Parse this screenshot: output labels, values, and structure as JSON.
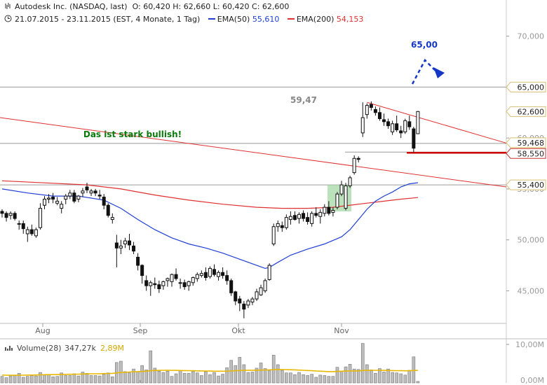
{
  "header": {
    "title": "Autodesk Inc. (NASDAQ, last)",
    "ohlc": "O: 60,420  H: 62,660  L: 60,420  C: 62,600",
    "range": "21.07.2015 - 23.11.2015 (EST, 4 Monate, 1 Tag)",
    "ema50_label": "EMA(50)",
    "ema50_value": "55,610",
    "ema200_label": "EMA(200)",
    "ema200_value": "54,153"
  },
  "colors": {
    "ema50": "#1f3fd6",
    "ema200": "#e03030",
    "target": "#1537c8",
    "bullish": "#0a7a0a",
    "box": "#9fd59f",
    "hline": "#9a9a9a",
    "support": "#cc0000"
  },
  "annotations": {
    "target_label": "65,00",
    "level_label": "59,47",
    "bullish_text": "Das ist stark bullish!"
  },
  "price_tags": [
    "65,000",
    "62,600",
    "59,468",
    "58,550",
    "55,400"
  ],
  "volume": {
    "label": "Volume(28)",
    "value1": "347,27k",
    "value2": "2,89M",
    "axis_labels": [
      "10,00M",
      "0,00M"
    ]
  },
  "chart_data": {
    "type": "candlestick",
    "title": "Autodesk Inc. (NASDAQ, last)",
    "y_ticks": [
      {
        "label": "70,000",
        "value": 70
      },
      {
        "label": "60,000",
        "value": 60
      },
      {
        "label": "55,000",
        "value": 55
      },
      {
        "label": "50,000",
        "value": 50
      },
      {
        "label": "45,000",
        "value": 45
      }
    ],
    "x_ticks": [
      "Aug",
      "Sep",
      "Okt",
      "Nov"
    ],
    "ylim": [
      41.8,
      70.8
    ],
    "candles": [
      [
        52.8,
        53.0,
        52.2,
        52.6
      ],
      [
        52.6,
        52.8,
        51.8,
        52.2
      ],
      [
        52.4,
        52.8,
        52.0,
        52.6
      ],
      [
        52.6,
        52.8,
        51.9,
        52.1
      ],
      [
        51.6,
        51.9,
        51.0,
        51.6
      ],
      [
        51.6,
        51.9,
        50.6,
        51.1
      ],
      [
        50.6,
        51.3,
        49.8,
        51.0
      ],
      [
        51.0,
        51.5,
        50.4,
        50.6
      ],
      [
        50.4,
        51.2,
        50.2,
        51.0
      ],
      [
        51.2,
        53.6,
        51.0,
        53.1
      ],
      [
        53.4,
        54.3,
        53.0,
        54.0
      ],
      [
        54.0,
        54.5,
        53.6,
        54.1
      ],
      [
        54.2,
        54.6,
        53.6,
        54.0
      ],
      [
        53.6,
        54.2,
        53.4,
        53.8
      ],
      [
        53.1,
        53.8,
        52.6,
        53.5
      ],
      [
        54.0,
        54.5,
        53.5,
        54.3
      ],
      [
        54.3,
        54.9,
        54.0,
        54.6
      ],
      [
        54.6,
        54.9,
        53.6,
        53.8
      ],
      [
        54.0,
        54.4,
        53.7,
        54.3
      ],
      [
        54.6,
        55.1,
        54.2,
        54.8
      ],
      [
        55.2,
        55.6,
        54.6,
        54.9
      ],
      [
        54.6,
        55.0,
        54.3,
        54.8
      ],
      [
        54.8,
        55.0,
        54.3,
        54.6
      ],
      [
        54.4,
        54.9,
        54.0,
        54.3
      ],
      [
        54.2,
        54.5,
        53.0,
        53.4
      ],
      [
        53.4,
        53.6,
        52.2,
        52.4
      ],
      [
        52.0,
        52.6,
        51.6,
        52.2
      ],
      [
        49.7,
        50.5,
        47.3,
        49.2
      ],
      [
        49.2,
        50.0,
        48.6,
        49.4
      ],
      [
        49.6,
        50.2,
        49.2,
        49.9
      ],
      [
        49.9,
        50.6,
        49.0,
        49.5
      ],
      [
        49.4,
        49.8,
        48.6,
        48.9
      ],
      [
        48.3,
        48.7,
        47.0,
        47.5
      ],
      [
        47.5,
        47.6,
        45.7,
        46.5
      ],
      [
        46.0,
        46.5,
        45.0,
        45.5
      ],
      [
        45.5,
        46.0,
        44.5,
        45.8
      ],
      [
        45.7,
        46.3,
        45.2,
        45.6
      ],
      [
        45.6,
        46.0,
        44.8,
        45.2
      ],
      [
        45.5,
        46.0,
        45.1,
        45.9
      ],
      [
        46.0,
        46.3,
        45.4,
        46.2
      ],
      [
        45.9,
        46.7,
        45.4,
        46.6
      ],
      [
        46.6,
        47.2,
        46.0,
        46.2
      ],
      [
        45.8,
        46.2,
        45.2,
        45.8
      ],
      [
        45.8,
        46.1,
        45.1,
        45.4
      ],
      [
        45.5,
        46.0,
        45.0,
        45.9
      ],
      [
        45.8,
        46.4,
        45.5,
        46.3
      ],
      [
        46.2,
        46.8,
        45.9,
        46.6
      ],
      [
        46.5,
        47.0,
        46.3,
        46.7
      ],
      [
        46.8,
        47.3,
        46.0,
        46.3
      ],
      [
        46.4,
        47.4,
        46.2,
        47.2
      ],
      [
        47.1,
        47.6,
        46.4,
        46.6
      ],
      [
        46.4,
        47.0,
        46.0,
        46.8
      ],
      [
        46.8,
        47.3,
        46.2,
        46.5
      ],
      [
        46.5,
        47.0,
        45.6,
        46.0
      ],
      [
        46.0,
        46.2,
        44.5,
        44.8
      ],
      [
        44.9,
        45.0,
        43.6,
        44.0
      ],
      [
        44.2,
        44.5,
        43.0,
        43.8
      ],
      [
        43.7,
        44.0,
        42.3,
        43.2
      ],
      [
        43.6,
        44.2,
        43.3,
        44.0
      ],
      [
        43.9,
        44.4,
        43.6,
        44.2
      ],
      [
        44.2,
        45.2,
        44.0,
        44.9
      ],
      [
        44.6,
        45.6,
        44.5,
        45.3
      ],
      [
        45.0,
        46.2,
        44.8,
        46.0
      ],
      [
        46.1,
        47.7,
        46.0,
        47.5
      ],
      [
        49.6,
        51.6,
        49.4,
        51.3
      ],
      [
        51.3,
        51.9,
        50.8,
        51.6
      ],
      [
        51.4,
        51.8,
        50.8,
        51.2
      ],
      [
        51.2,
        52.5,
        51.0,
        52.2
      ],
      [
        52.0,
        52.8,
        51.5,
        52.3
      ],
      [
        52.4,
        52.8,
        51.9,
        52.0
      ],
      [
        52.1,
        52.7,
        51.6,
        52.5
      ],
      [
        52.6,
        52.9,
        51.8,
        52.1
      ],
      [
        52.2,
        52.7,
        51.5,
        51.8
      ],
      [
        51.6,
        52.8,
        51.3,
        52.6
      ],
      [
        52.6,
        53.2,
        52.2,
        52.4
      ],
      [
        52.3,
        53.0,
        51.6,
        52.7
      ],
      [
        52.6,
        53.5,
        52.3,
        53.2
      ],
      [
        53.2,
        53.8,
        52.4,
        52.6
      ],
      [
        52.7,
        53.2,
        52.3,
        52.9
      ],
      [
        53.2,
        54.7,
        53.0,
        54.5
      ],
      [
        54.5,
        55.8,
        54.3,
        55.4
      ],
      [
        53.1,
        55.6,
        52.9,
        55.3
      ],
      [
        55.3,
        56.3,
        55.1,
        56.1
      ],
      [
        56.6,
        58.3,
        56.4,
        58.0
      ],
      [
        58.0,
        58.2,
        57.6,
        57.9
      ],
      [
        60.5,
        63.5,
        60.1,
        62.0
      ],
      [
        62.3,
        63.4,
        61.9,
        63.2
      ],
      [
        63.3,
        63.6,
        62.7,
        63.0
      ],
      [
        62.8,
        63.1,
        62.2,
        62.5
      ],
      [
        62.5,
        63.0,
        61.7,
        61.9
      ],
      [
        61.8,
        62.4,
        61.2,
        61.6
      ],
      [
        61.6,
        61.9,
        60.9,
        61.2
      ],
      [
        60.6,
        61.7,
        60.3,
        61.4
      ],
      [
        61.4,
        62.2,
        60.6,
        60.8
      ],
      [
        60.7,
        61.2,
        60.0,
        60.5
      ],
      [
        60.6,
        61.9,
        60.4,
        61.7
      ],
      [
        61.6,
        62.2,
        60.8,
        61.1
      ],
      [
        60.9,
        61.1,
        58.6,
        59.0
      ],
      [
        60.42,
        62.66,
        60.42,
        62.6
      ]
    ],
    "series": [
      {
        "name": "EMA(50)",
        "values": [
          [
            0,
            55.0
          ],
          [
            6,
            54.6
          ],
          [
            12,
            54.3
          ],
          [
            18,
            54.3
          ],
          [
            24,
            53.9
          ],
          [
            28,
            53.1
          ],
          [
            32,
            52.0
          ],
          [
            36,
            51.0
          ],
          [
            40,
            50.2
          ],
          [
            44,
            49.6
          ],
          [
            48,
            49.2
          ],
          [
            52,
            48.7
          ],
          [
            56,
            48.1
          ],
          [
            60,
            47.5
          ],
          [
            62,
            47.2
          ],
          [
            63,
            47.3
          ],
          [
            65,
            47.8
          ],
          [
            68,
            48.5
          ],
          [
            72,
            49.1
          ],
          [
            76,
            49.6
          ],
          [
            80,
            50.3
          ],
          [
            82,
            51.0
          ],
          [
            84,
            52.0
          ],
          [
            86,
            53.0
          ],
          [
            88,
            53.8
          ],
          [
            90,
            54.3
          ],
          [
            92,
            54.7
          ],
          [
            94,
            55.2
          ],
          [
            96,
            55.5
          ],
          [
            98,
            55.61
          ]
        ]
      },
      {
        "name": "EMA(200)",
        "values": [
          [
            0,
            55.8
          ],
          [
            10,
            55.6
          ],
          [
            20,
            55.4
          ],
          [
            28,
            55.0
          ],
          [
            36,
            54.4
          ],
          [
            44,
            53.9
          ],
          [
            52,
            53.5
          ],
          [
            60,
            53.2
          ],
          [
            66,
            53.1
          ],
          [
            72,
            53.1
          ],
          [
            78,
            53.2
          ],
          [
            84,
            53.5
          ],
          [
            90,
            53.8
          ],
          [
            94,
            54.0
          ],
          [
            98,
            54.153
          ]
        ]
      }
    ],
    "horizontal_levels": [
      65.0,
      59.468,
      58.55,
      55.4
    ],
    "volume_k": [
      1500,
      1200,
      1600,
      1700,
      2200,
      1300,
      1500,
      1700,
      1600,
      2400,
      1800,
      1900,
      1400,
      1500,
      2300,
      1700,
      1700,
      2100,
      1600,
      2500,
      2200,
      1700,
      1700,
      1600,
      2000,
      2300,
      1400,
      4700,
      5000,
      2600,
      2300,
      3200,
      2600,
      4000,
      3000,
      7400,
      3400,
      2700,
      2400,
      2700,
      1500,
      2100,
      2900,
      2200,
      2200,
      2600,
      2300,
      1700,
      2600,
      1900,
      2400,
      1600,
      2000,
      3500,
      5200,
      4000,
      5900,
      4200,
      2400,
      2500,
      3400,
      4600,
      3300,
      2800,
      6400,
      4200,
      2900,
      2300,
      2300,
      1900,
      2400,
      1900,
      1700,
      2000,
      1300,
      1800,
      1700,
      1500,
      1500,
      3600,
      2700,
      3700,
      4300,
      3200,
      3100,
      9100,
      4200,
      3000,
      2200,
      3300,
      2500,
      3200,
      2400,
      2300,
      2100,
      1800,
      2900,
      6000,
      347
    ],
    "volume_avg_k": [
      1800,
      1780,
      1760,
      1760,
      1780,
      1780,
      1800,
      1800,
      1820,
      1850,
      1880,
      1900,
      1900,
      1920,
      1950,
      1970,
      1990,
      2000,
      2020,
      2050,
      2080,
      2090,
      2100,
      2120,
      2150,
      2180,
      2200,
      2300,
      2400,
      2450,
      2500,
      2560,
      2600,
      2650,
      2700,
      2800,
      2850,
      2880,
      2900,
      2920,
      2900,
      2880,
      2860,
      2840,
      2820,
      2800,
      2780,
      2760,
      2740,
      2720,
      2700,
      2690,
      2690,
      2700,
      2750,
      2800,
      2860,
      2900,
      2920,
      2920,
      2920,
      2950,
      2980,
      3000,
      3050,
      3080,
      3080,
      3060,
      3040,
      3000,
      2950,
      2900,
      2850,
      2800,
      2750,
      2700,
      2650,
      2600,
      2600,
      2650,
      2700,
      2720,
      2750,
      2760,
      2780,
      2850,
      2880,
      2900,
      2900,
      2900,
      2880,
      2860,
      2840,
      2820,
      2800,
      2790,
      2800,
      2850,
      2890
    ]
  }
}
